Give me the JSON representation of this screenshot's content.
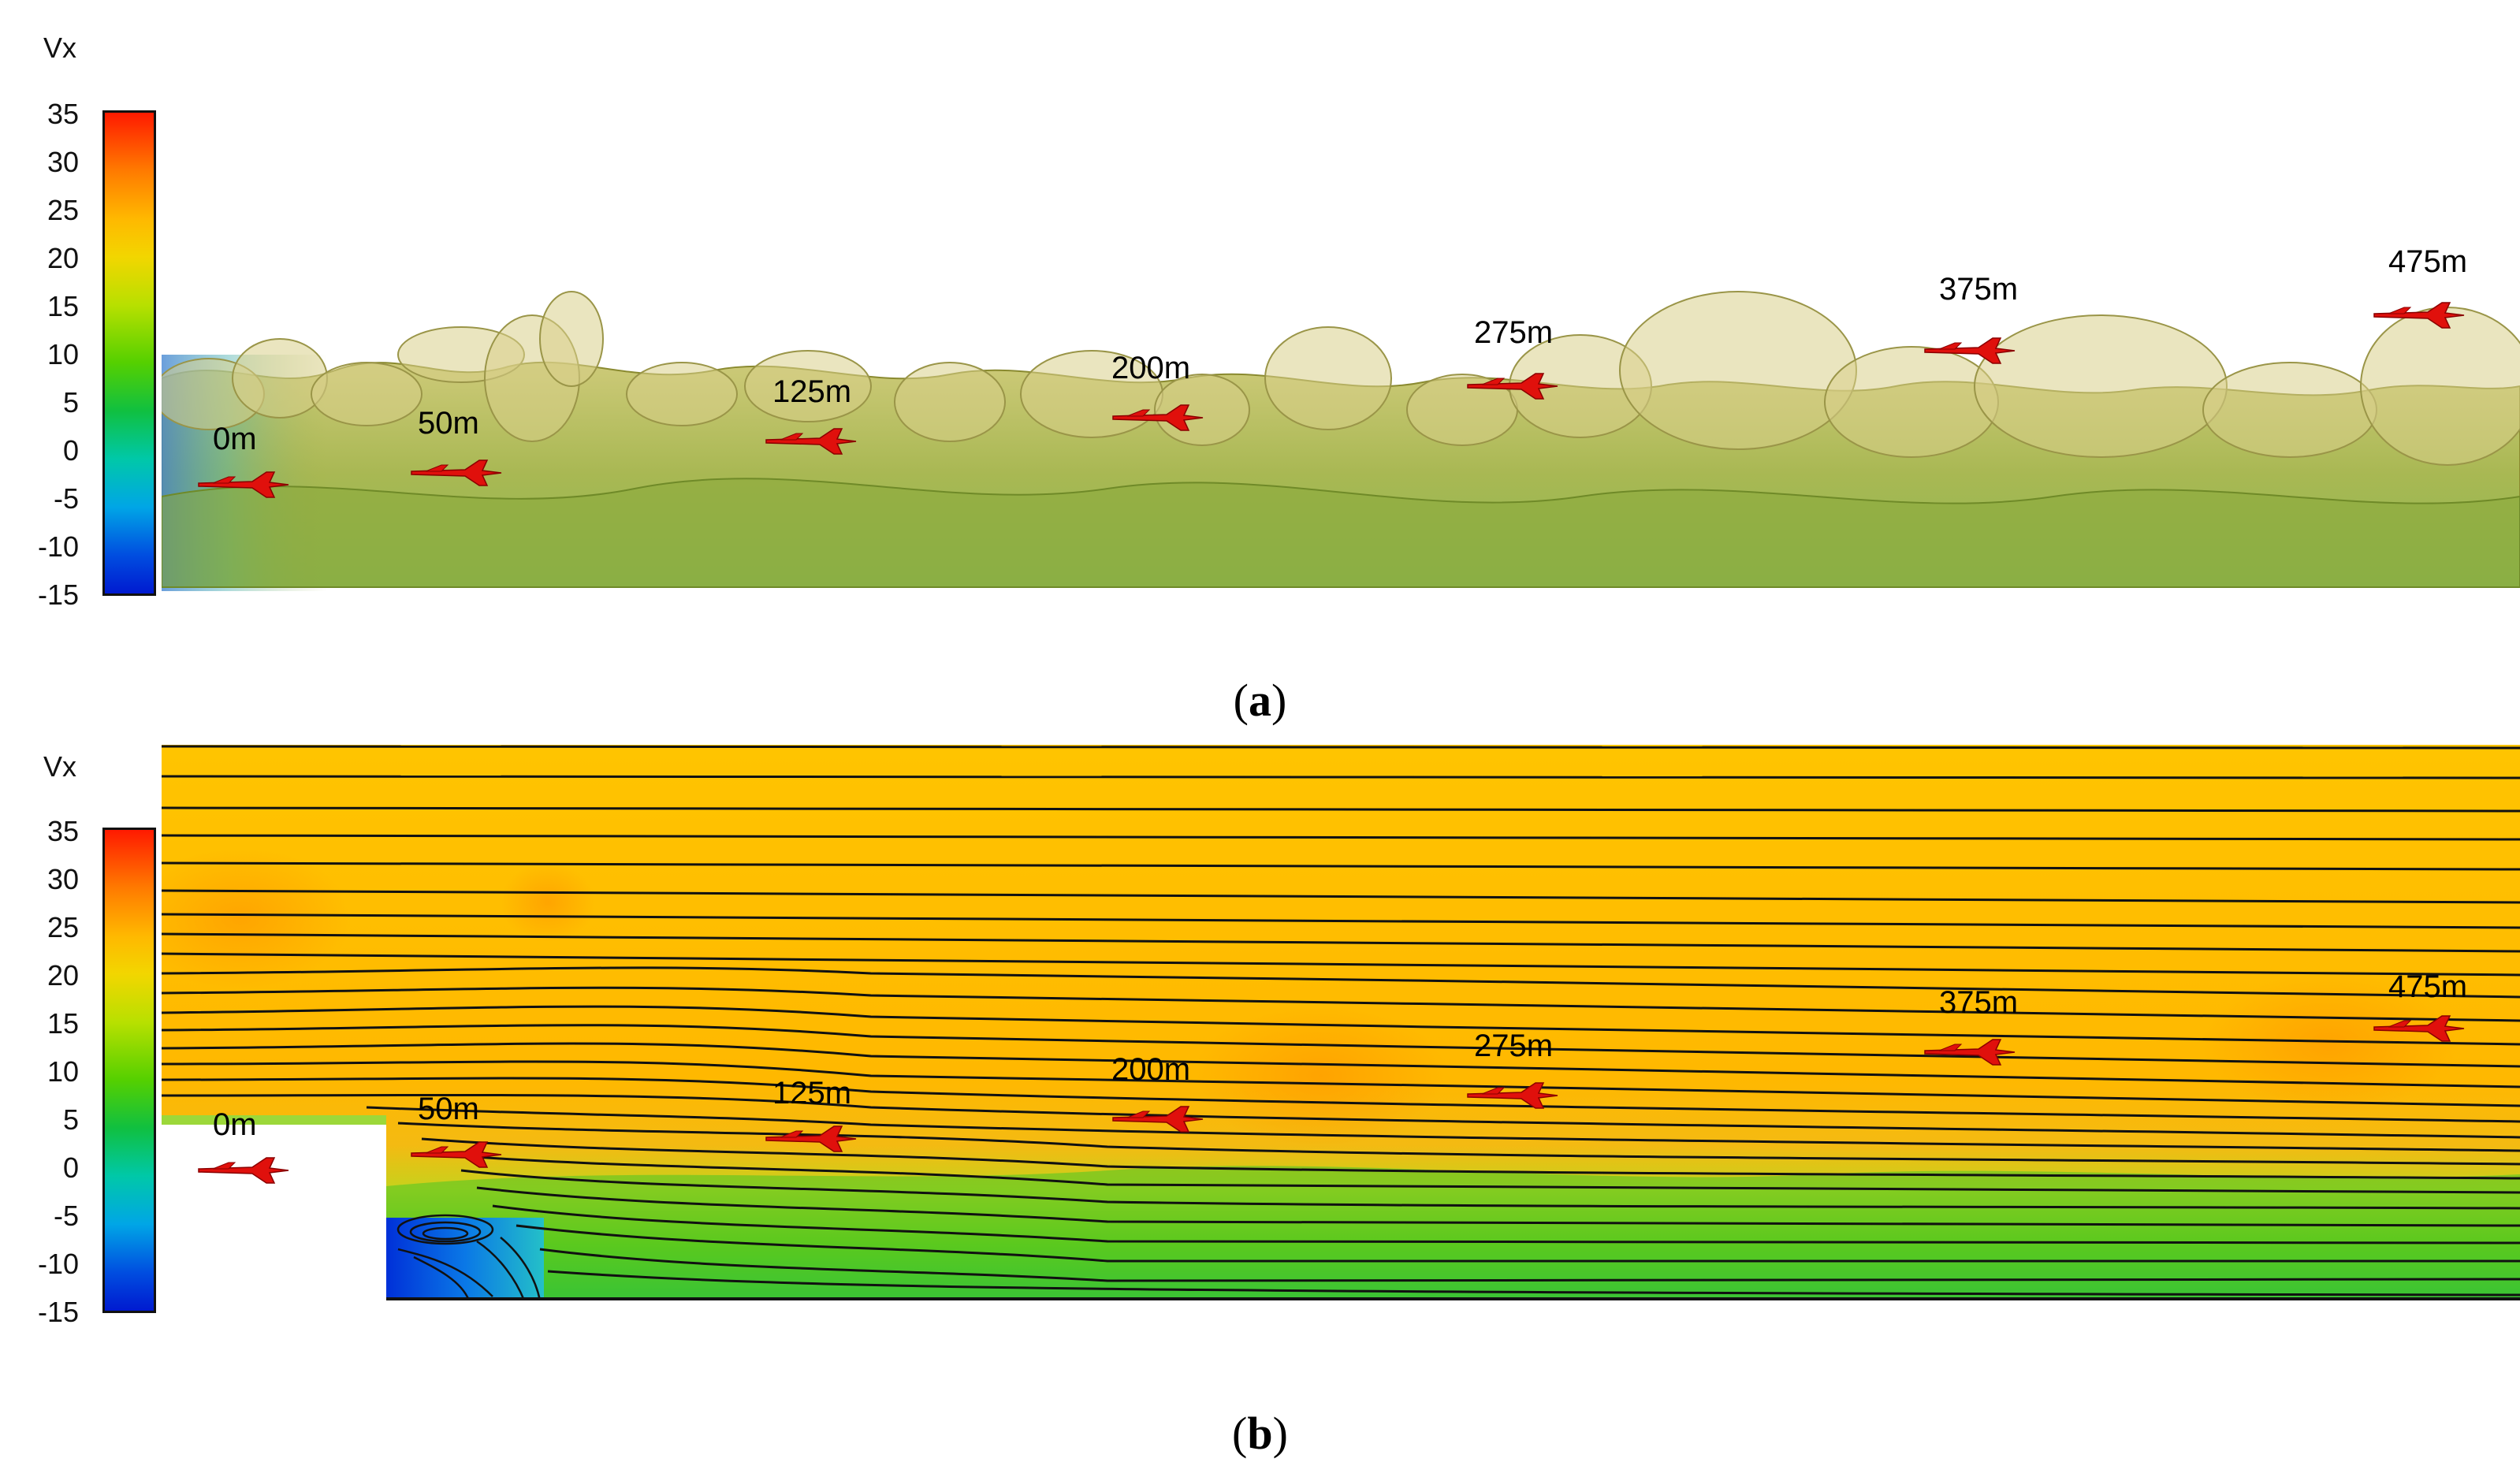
{
  "colorbar": {
    "title": "Vx",
    "ticks": [
      "35",
      "30",
      "25",
      "20",
      "15",
      "10",
      "5",
      "0",
      "-5",
      "-10",
      "-15"
    ],
    "range": [
      -15,
      35
    ],
    "colors": [
      "#ff1a00",
      "#ffb800",
      "#b8e000",
      "#10c040",
      "#00a6e6",
      "#001ad0"
    ]
  },
  "panels": [
    {
      "caption": {
        "open": "(",
        "letter": "a",
        "close": ")"
      },
      "view": "isosurface",
      "markers": [
        "0m",
        "50m",
        "125m",
        "200m",
        "275m",
        "375m",
        "475m"
      ]
    },
    {
      "caption": {
        "open": "(",
        "letter": "b",
        "close": ")"
      },
      "view": "contour-streamlines",
      "markers": [
        "0m",
        "50m",
        "125m",
        "200m",
        "275m",
        "375m",
        "475m"
      ]
    }
  ],
  "aircraft_icon": "jet-aircraft-icon",
  "aircraft_color": "#e0100c"
}
